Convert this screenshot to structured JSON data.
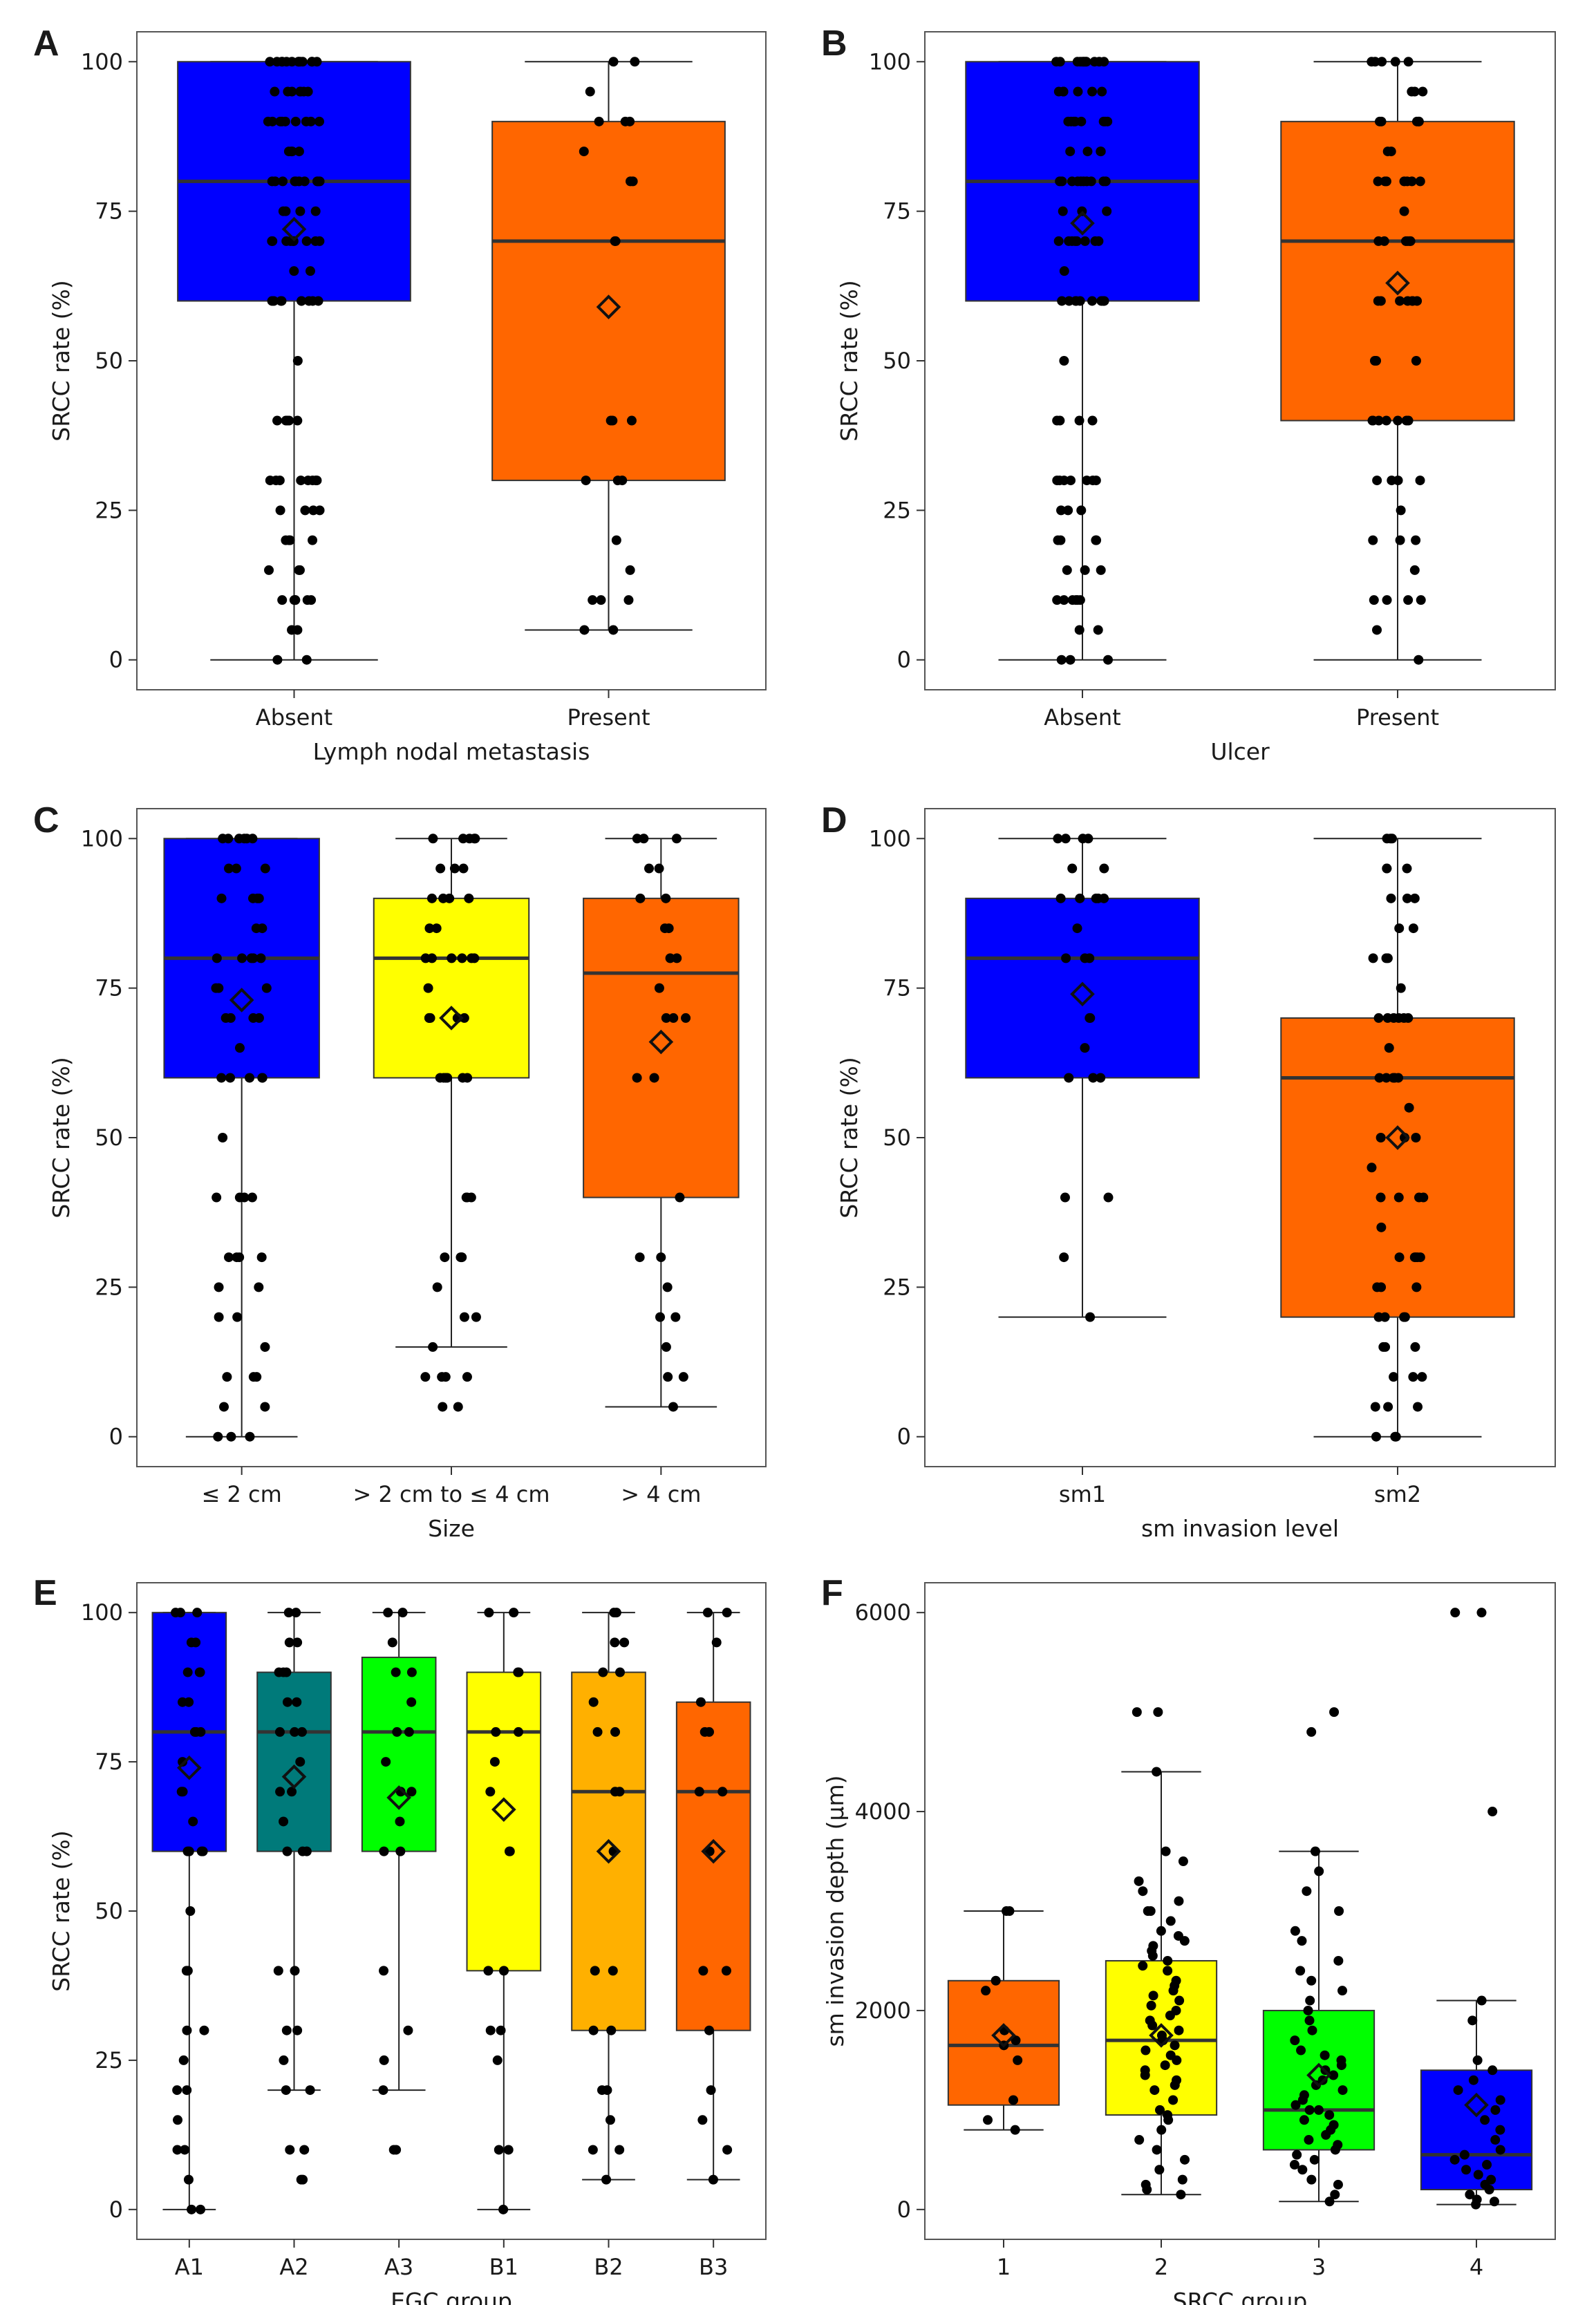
{
  "chart_data": [
    {
      "type": "box",
      "panel": "A",
      "xlabel": "Lymph nodal metastasis",
      "ylabel": "SRCC rate (%)",
      "ylim": [
        -5,
        105
      ],
      "yticks": [
        0,
        25,
        50,
        75,
        100
      ],
      "categories": [
        "Absent",
        "Present"
      ],
      "colors": [
        "#0000ff",
        "#ff6600"
      ],
      "boxes": [
        {
          "q1": 60,
          "median": 80,
          "q3": 100,
          "whisker_low": 0,
          "whisker_high": 100,
          "mean": 72,
          "points": [
            0,
            0,
            5,
            5,
            10,
            10,
            10,
            10,
            10,
            10,
            15,
            15,
            15,
            20,
            20,
            20,
            20,
            25,
            25,
            25,
            25,
            30,
            30,
            30,
            30,
            30,
            30,
            30,
            30,
            40,
            40,
            40,
            40,
            40,
            50,
            60,
            60,
            60,
            60,
            60,
            60,
            60,
            60,
            60,
            65,
            65,
            70,
            70,
            70,
            70,
            70,
            70,
            70,
            70,
            70,
            75,
            75,
            75,
            75,
            80,
            80,
            80,
            80,
            80,
            80,
            80,
            80,
            80,
            80,
            85,
            85,
            85,
            85,
            90,
            90,
            90,
            90,
            90,
            90,
            90,
            90,
            90,
            95,
            95,
            95,
            95,
            95,
            95,
            95,
            100,
            100,
            100,
            100,
            100,
            100,
            100,
            100,
            100,
            100,
            100,
            100,
            100
          ]
        },
        {
          "q1": 30,
          "median": 70,
          "q3": 90,
          "whisker_low": 5,
          "whisker_high": 100,
          "mean": 59,
          "points": [
            5,
            5,
            10,
            10,
            10,
            15,
            20,
            30,
            30,
            30,
            40,
            40,
            40,
            70,
            70,
            80,
            80,
            85,
            90,
            90,
            90,
            95,
            100,
            100
          ]
        }
      ]
    },
    {
      "type": "box",
      "panel": "B",
      "xlabel": "Ulcer",
      "ylabel": "SRCC rate (%)",
      "ylim": [
        -5,
        105
      ],
      "yticks": [
        0,
        25,
        50,
        75,
        100
      ],
      "categories": [
        "Absent",
        "Present"
      ],
      "colors": [
        "#0000ff",
        "#ff6600"
      ],
      "boxes": [
        {
          "q1": 60,
          "median": 80,
          "q3": 100,
          "whisker_low": 0,
          "whisker_high": 100,
          "mean": 73,
          "points": [
            0,
            0,
            0,
            5,
            5,
            10,
            10,
            10,
            10,
            10,
            10,
            15,
            15,
            15,
            20,
            20,
            20,
            20,
            25,
            25,
            25,
            30,
            30,
            30,
            30,
            30,
            30,
            30,
            40,
            40,
            40,
            40,
            50,
            60,
            60,
            60,
            60,
            60,
            60,
            60,
            60,
            60,
            65,
            70,
            70,
            70,
            70,
            70,
            70,
            70,
            70,
            75,
            75,
            75,
            80,
            80,
            80,
            80,
            80,
            80,
            80,
            80,
            80,
            80,
            85,
            85,
            85,
            85,
            90,
            90,
            90,
            90,
            90,
            90,
            90,
            90,
            95,
            95,
            95,
            95,
            95,
            95,
            100,
            100,
            100,
            100,
            100,
            100,
            100,
            100,
            100,
            100,
            100,
            100
          ]
        },
        {
          "q1": 40,
          "median": 70,
          "q3": 90,
          "whisker_low": 0,
          "whisker_high": 100,
          "mean": 63,
          "points": [
            0,
            5,
            10,
            10,
            10,
            10,
            15,
            20,
            20,
            20,
            25,
            30,
            30,
            30,
            30,
            40,
            40,
            40,
            40,
            40,
            40,
            40,
            50,
            50,
            50,
            60,
            60,
            60,
            60,
            60,
            60,
            60,
            70,
            70,
            70,
            70,
            70,
            70,
            75,
            80,
            80,
            80,
            80,
            80,
            80,
            80,
            85,
            85,
            90,
            90,
            90,
            90,
            90,
            95,
            95,
            95,
            100,
            100,
            100,
            100,
            100
          ]
        }
      ]
    },
    {
      "type": "box",
      "panel": "C",
      "xlabel": "Size",
      "ylabel": "SRCC rate (%)",
      "ylim": [
        -5,
        105
      ],
      "yticks": [
        0,
        25,
        50,
        75,
        100
      ],
      "categories": [
        "≤ 2 cm",
        "> 2 cm to ≤ 4 cm",
        "> 4 cm"
      ],
      "colors": [
        "#0000ff",
        "#ffff00",
        "#ff6600"
      ],
      "boxes": [
        {
          "q1": 60,
          "median": 80,
          "q3": 100,
          "whisker_low": 0,
          "whisker_high": 100,
          "mean": 73,
          "points": [
            0,
            0,
            0,
            5,
            5,
            10,
            10,
            10,
            15,
            20,
            20,
            25,
            25,
            30,
            30,
            30,
            30,
            40,
            40,
            40,
            40,
            50,
            60,
            60,
            60,
            60,
            60,
            65,
            70,
            70,
            70,
            70,
            75,
            75,
            75,
            80,
            80,
            80,
            80,
            80,
            85,
            85,
            90,
            90,
            90,
            90,
            95,
            95,
            95,
            100,
            100,
            100,
            100,
            100,
            100
          ]
        },
        {
          "q1": 60,
          "median": 80,
          "q3": 90,
          "whisker_low": 15,
          "whisker_high": 100,
          "mean": 70,
          "points": [
            5,
            5,
            10,
            10,
            10,
            10,
            15,
            20,
            20,
            25,
            30,
            30,
            30,
            30,
            40,
            40,
            40,
            60,
            60,
            60,
            60,
            60,
            60,
            70,
            70,
            70,
            70,
            70,
            75,
            80,
            80,
            80,
            80,
            80,
            80,
            85,
            85,
            90,
            90,
            90,
            90,
            95,
            95,
            95,
            100,
            100,
            100,
            100,
            100
          ]
        },
        {
          "q1": 40,
          "median": 77.5,
          "q3": 90,
          "whisker_low": 5,
          "whisker_high": 100,
          "mean": 66,
          "points": [
            5,
            10,
            10,
            15,
            20,
            20,
            25,
            30,
            30,
            40,
            60,
            60,
            70,
            70,
            70,
            75,
            80,
            80,
            85,
            85,
            90,
            90,
            95,
            95,
            100,
            100,
            100
          ]
        }
      ]
    },
    {
      "type": "box",
      "panel": "D",
      "xlabel": "sm invasion level",
      "ylabel": "SRCC rate (%)",
      "ylim": [
        -5,
        105
      ],
      "yticks": [
        0,
        25,
        50,
        75,
        100
      ],
      "categories": [
        "sm1",
        "sm2"
      ],
      "colors": [
        "#0000ff",
        "#ff6600"
      ],
      "boxes": [
        {
          "q1": 60,
          "median": 80,
          "q3": 90,
          "whisker_low": 20,
          "whisker_high": 100,
          "mean": 74,
          "points": [
            20,
            30,
            40,
            40,
            60,
            60,
            60,
            65,
            70,
            70,
            80,
            80,
            80,
            85,
            90,
            90,
            90,
            90,
            90,
            95,
            95,
            100,
            100,
            100,
            100
          ]
        },
        {
          "q1": 20,
          "median": 60,
          "q3": 70,
          "whisker_low": 0,
          "whisker_high": 100,
          "mean": 50,
          "points": [
            0,
            0,
            0,
            5,
            5,
            5,
            10,
            10,
            10,
            15,
            15,
            15,
            20,
            20,
            20,
            20,
            25,
            25,
            25,
            30,
            30,
            30,
            30,
            30,
            35,
            40,
            40,
            40,
            40,
            45,
            50,
            50,
            50,
            55,
            60,
            60,
            60,
            60,
            60,
            65,
            70,
            70,
            70,
            70,
            70,
            70,
            75,
            80,
            80,
            80,
            85,
            85,
            90,
            90,
            90,
            95,
            95,
            95,
            100,
            100,
            100
          ]
        }
      ]
    },
    {
      "type": "box",
      "panel": "E",
      "xlabel": "EGC group",
      "ylabel": "SRCC rate (%)",
      "ylim": [
        -5,
        105
      ],
      "yticks": [
        0,
        25,
        50,
        75,
        100
      ],
      "categories": [
        "A1",
        "A2",
        "A3",
        "B1",
        "B2",
        "B3"
      ],
      "colors": [
        "#0000ff",
        "#007a7a",
        "#00ff00",
        "#ffff00",
        "#ffb000",
        "#ff6600"
      ],
      "boxes": [
        {
          "q1": 60,
          "median": 80,
          "q3": 100,
          "whisker_low": 0,
          "whisker_high": 100,
          "mean": 74,
          "points": [
            0,
            0,
            5,
            10,
            10,
            15,
            20,
            20,
            25,
            30,
            30,
            40,
            40,
            50,
            60,
            60,
            60,
            60,
            65,
            70,
            70,
            75,
            80,
            80,
            80,
            85,
            85,
            90,
            90,
            90,
            95,
            95,
            100,
            100,
            100
          ]
        },
        {
          "q1": 60,
          "median": 80,
          "q3": 90,
          "whisker_low": 20,
          "whisker_high": 100,
          "mean": 72.5,
          "points": [
            5,
            5,
            10,
            10,
            20,
            20,
            25,
            30,
            30,
            40,
            40,
            60,
            60,
            60,
            65,
            70,
            70,
            75,
            80,
            80,
            80,
            85,
            85,
            90,
            90,
            90,
            95,
            95,
            100,
            100
          ]
        },
        {
          "q1": 60,
          "median": 80,
          "q3": 92.5,
          "whisker_low": 20,
          "whisker_high": 100,
          "mean": 69,
          "points": [
            10,
            10,
            20,
            25,
            30,
            40,
            60,
            60,
            65,
            70,
            70,
            75,
            80,
            80,
            85,
            90,
            90,
            95,
            100,
            100
          ]
        },
        {
          "q1": 40,
          "median": 80,
          "q3": 90,
          "whisker_low": 0,
          "whisker_high": 100,
          "mean": 67,
          "points": [
            0,
            10,
            10,
            25,
            30,
            30,
            40,
            40,
            60,
            60,
            70,
            75,
            80,
            80,
            90,
            90,
            100,
            100
          ]
        },
        {
          "q1": 30,
          "median": 70,
          "q3": 90,
          "whisker_low": 5,
          "whisker_high": 100,
          "mean": 60,
          "points": [
            5,
            10,
            10,
            15,
            20,
            20,
            30,
            30,
            40,
            40,
            60,
            70,
            70,
            80,
            80,
            85,
            90,
            90,
            95,
            95,
            100,
            100
          ]
        },
        {
          "q1": 30,
          "median": 70,
          "q3": 85,
          "whisker_low": 5,
          "whisker_high": 100,
          "mean": 60,
          "points": [
            5,
            10,
            15,
            20,
            30,
            40,
            40,
            60,
            70,
            70,
            80,
            80,
            85,
            95,
            100,
            100
          ]
        }
      ]
    },
    {
      "type": "box",
      "panel": "F",
      "xlabel": "SRCC group",
      "ylabel": "sm invasion depth (μm)",
      "ylim": [
        -300,
        6300
      ],
      "yticks": [
        0,
        2000,
        4000,
        6000
      ],
      "categories": [
        "1",
        "2",
        "3",
        "4"
      ],
      "colors": [
        "#ff6600",
        "#ffff00",
        "#00ff00",
        "#0000ff"
      ],
      "boxes": [
        {
          "q1": 1050,
          "median": 1650,
          "q3": 2300,
          "whisker_low": 800,
          "whisker_high": 3000,
          "mean": 1750,
          "points": [
            800,
            900,
            1100,
            1500,
            1650,
            1700,
            1800,
            2200,
            2300,
            3000,
            3000
          ]
        },
        {
          "q1": 950,
          "median": 1700,
          "q3": 2500,
          "whisker_low": 150,
          "whisker_high": 4400,
          "mean": 1750,
          "points": [
            150,
            200,
            250,
            300,
            400,
            500,
            600,
            700,
            800,
            900,
            950,
            1000,
            1100,
            1200,
            1250,
            1300,
            1350,
            1400,
            1450,
            1500,
            1550,
            1600,
            1650,
            1700,
            1700,
            1750,
            1800,
            1850,
            1900,
            1950,
            2000,
            2050,
            2100,
            2150,
            2200,
            2250,
            2300,
            2400,
            2450,
            2500,
            2550,
            2600,
            2650,
            2700,
            2750,
            2800,
            2900,
            3000,
            3000,
            3100,
            3200,
            3300,
            3500,
            3600,
            4400,
            5000,
            5000
          ]
        },
        {
          "q1": 600,
          "median": 1000,
          "q3": 2000,
          "whisker_low": 80,
          "whisker_high": 3600,
          "mean": 1350,
          "points": [
            80,
            150,
            250,
            300,
            400,
            450,
            500,
            550,
            600,
            650,
            700,
            750,
            800,
            850,
            900,
            950,
            1000,
            1000,
            1050,
            1100,
            1150,
            1200,
            1250,
            1300,
            1350,
            1400,
            1450,
            1500,
            1550,
            1600,
            1700,
            1800,
            1900,
            2000,
            2100,
            2200,
            2300,
            2400,
            2500,
            2700,
            2800,
            3000,
            3200,
            3400,
            3600,
            4800,
            5000
          ]
        },
        {
          "q1": 200,
          "median": 550,
          "q3": 1400,
          "whisker_low": 50,
          "whisker_high": 2100,
          "mean": 1050,
          "points": [
            50,
            80,
            100,
            150,
            200,
            250,
            300,
            350,
            400,
            450,
            500,
            550,
            600,
            700,
            800,
            900,
            1000,
            1100,
            1200,
            1300,
            1400,
            1500,
            1900,
            2100,
            4000,
            6000,
            6000
          ]
        }
      ]
    }
  ]
}
